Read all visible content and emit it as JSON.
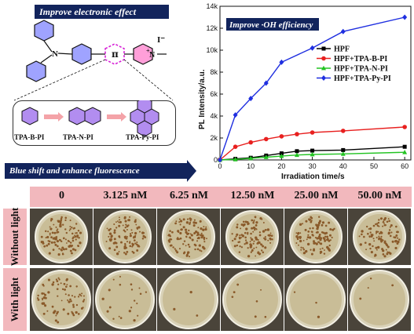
{
  "top_banner": {
    "text": "Improve electronic effect"
  },
  "pi_symbol": "π",
  "iodide_label": "I⁻",
  "n_plus_label": "N",
  "tpa_n_label": "N",
  "molecules": [
    {
      "label": "TPA-B-PI",
      "icon": "benzene-ring-icon"
    },
    {
      "label": "TPA-N-PI",
      "icon": "naphthalene-icon"
    },
    {
      "label": "TPA-Py-PI",
      "icon": "pyrene-icon"
    }
  ],
  "bottom_banner": {
    "text": "Blue shift and enhance fluorescence"
  },
  "chart_data": {
    "type": "line",
    "title": "Improve ·OH efficiency",
    "xlabel": "Irradiation time/s",
    "ylabel": "PL Intensity/a.u.",
    "xlim": [
      0,
      62
    ],
    "ylim": [
      0,
      14000
    ],
    "xticks": [
      "0",
      "10",
      "20",
      "30",
      "40",
      "50",
      "60"
    ],
    "yticks": [
      "0",
      "2k",
      "4k",
      "6k",
      "8k",
      "10k",
      "12k",
      "14k"
    ],
    "legend_position": "center-right",
    "series": [
      {
        "name": "HPF",
        "color": "#000000",
        "marker": "square",
        "x": [
          0,
          5,
          10,
          15,
          20,
          25,
          30,
          40,
          60
        ],
        "y": [
          0,
          100,
          200,
          400,
          600,
          800,
          850,
          900,
          1200
        ]
      },
      {
        "name": "HPF+TPA-B-PI",
        "color": "#e8201f",
        "marker": "circle",
        "x": [
          0,
          5,
          10,
          15,
          20,
          25,
          30,
          40,
          60
        ],
        "y": [
          0,
          1200,
          1600,
          1900,
          2150,
          2350,
          2500,
          2650,
          3000
        ]
      },
      {
        "name": "HPF+TPA-N-PI",
        "color": "#22c322",
        "marker": "triangle",
        "x": [
          0,
          5,
          10,
          15,
          20,
          25,
          30,
          40,
          60
        ],
        "y": [
          0,
          50,
          150,
          250,
          350,
          450,
          500,
          550,
          700
        ]
      },
      {
        "name": "HPF+TPA-Py-PI",
        "color": "#1f2fe0",
        "marker": "diamond",
        "x": [
          0,
          5,
          10,
          15,
          20,
          30,
          40,
          60
        ],
        "y": [
          0,
          4100,
          5600,
          7000,
          8900,
          10200,
          11700,
          13000
        ]
      }
    ]
  },
  "plates": {
    "concentrations": [
      "0",
      "3.125 nM",
      "6.25 nM",
      "12.50 nM",
      "25.00 nM",
      "50.00 nM"
    ],
    "row_labels": [
      "Without light",
      "With light"
    ],
    "colony_density": {
      "without_light": [
        0.8,
        0.75,
        0.75,
        0.8,
        0.8,
        0.75
      ],
      "with_light": [
        0.55,
        0.15,
        0.02,
        0.05,
        0.02,
        0.03
      ]
    }
  }
}
